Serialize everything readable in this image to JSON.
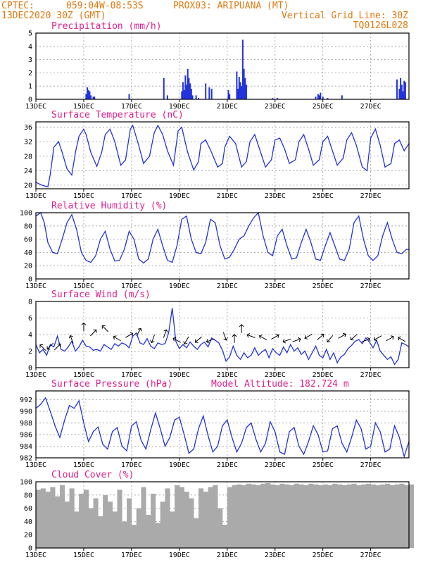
{
  "header": {
    "source": "CPTEC:",
    "coords": "059:04W-08:53S",
    "station": "PROX03: ARIPUANA (MT)",
    "date": "13DEC2020 30Z (GMT)",
    "grid_note": "Vertical Grid Line: 30Z",
    "code": "TQ0126L028"
  },
  "colors": {
    "header": "#e07a10",
    "title": "#e0208c",
    "series": "#2233dd",
    "cloud": "#aaaaaa",
    "grid": "#999999"
  },
  "chart_data": [
    {
      "id": "precip",
      "type": "bar",
      "title": "Precipitation (mm/h)",
      "ylim": [
        0,
        5
      ],
      "yticks": [
        "0",
        "1",
        "2",
        "3",
        "4",
        "5"
      ],
      "xticks": [
        "13DEC",
        "15DEC",
        "17DEC",
        "19DEC",
        "21DEC",
        "23DEC",
        "25DEC",
        "27DEC"
      ],
      "x_range_days": [
        13,
        28.6
      ],
      "grid": true,
      "x": [
        15.1,
        15.15,
        15.2,
        15.25,
        15.3,
        15.4,
        15.45,
        16.9,
        18.35,
        18.5,
        19.1,
        19.15,
        19.2,
        19.25,
        19.3,
        19.35,
        19.4,
        19.45,
        19.5,
        19.55,
        19.7,
        19.8,
        20.1,
        20.25,
        20.35,
        21.05,
        21.1,
        21.4,
        21.45,
        21.5,
        21.55,
        21.6,
        21.65,
        21.7,
        21.75,
        21.8,
        22.9,
        23.1,
        24.7,
        24.8,
        24.85,
        24.9,
        25.0,
        25.2,
        25.8,
        28.1,
        28.2,
        28.25,
        28.3,
        28.35,
        28.4,
        28.45
      ],
      "values": [
        0.4,
        0.9,
        0.7,
        0.6,
        0.3,
        0.2,
        0.2,
        0.4,
        1.6,
        0.3,
        0.6,
        1.3,
        0.7,
        1.8,
        1.1,
        2.3,
        1.6,
        1.2,
        0.8,
        0.3,
        0.3,
        0.1,
        1.2,
        0.9,
        0.8,
        0.7,
        0.4,
        2.1,
        0.8,
        1.7,
        1.3,
        1.0,
        4.5,
        2.3,
        1.6,
        1.1,
        0.1,
        0.1,
        0.2,
        0.4,
        0.3,
        0.5,
        0.2,
        0.1,
        0.3,
        1.5,
        0.8,
        1.6,
        1.1,
        0.6,
        1.4,
        1.3
      ]
    },
    {
      "id": "temp",
      "type": "line",
      "title": "Surface Temperature (nC)",
      "ylim": [
        19,
        37.5
      ],
      "yticks": [
        "20",
        "24",
        "28",
        "32",
        "36"
      ],
      "ytick_values": [
        20,
        24,
        28,
        32,
        36
      ],
      "xticks": [
        "13DEC",
        "15DEC",
        "17DEC",
        "19DEC",
        "21DEC",
        "23DEC",
        "25DEC",
        "27DEC"
      ],
      "x_range_days": [
        13,
        28.6
      ],
      "grid": true,
      "x": [
        13.0,
        13.25,
        13.5,
        13.6,
        13.75,
        13.95,
        14.1,
        14.3,
        14.5,
        14.65,
        14.8,
        15.0,
        15.1,
        15.3,
        15.55,
        15.75,
        15.9,
        16.1,
        16.3,
        16.55,
        16.75,
        16.95,
        17.05,
        17.3,
        17.5,
        17.75,
        17.95,
        18.1,
        18.3,
        18.5,
        18.75,
        18.95,
        19.1,
        19.35,
        19.6,
        19.8,
        19.9,
        20.1,
        20.35,
        20.6,
        20.8,
        20.9,
        21.1,
        21.35,
        21.6,
        21.8,
        21.95,
        22.15,
        22.35,
        22.6,
        22.85,
        23.0,
        23.2,
        23.4,
        23.6,
        23.85,
        24.0,
        24.2,
        24.4,
        24.6,
        24.85,
        25.0,
        25.2,
        25.4,
        25.6,
        25.85,
        26.0,
        26.2,
        26.4,
        26.65,
        26.85,
        27.0,
        27.2,
        27.4,
        27.6,
        27.85,
        28.0,
        28.2,
        28.4,
        28.6
      ],
      "values": [
        20.8,
        20.0,
        19.5,
        23.0,
        30.5,
        32.0,
        29.0,
        24.5,
        22.8,
        29.0,
        33.5,
        35.5,
        34.0,
        29.0,
        25.2,
        29.0,
        34.0,
        35.5,
        32.0,
        25.5,
        27.0,
        35.5,
        36.5,
        31.0,
        26.0,
        28.0,
        34.5,
        36.5,
        34.0,
        29.5,
        25.5,
        35.0,
        36.0,
        29.0,
        24.2,
        26.5,
        31.5,
        32.5,
        29.0,
        25.0,
        26.0,
        30.5,
        33.5,
        31.5,
        25.0,
        26.5,
        32.0,
        34.0,
        30.0,
        25.0,
        27.0,
        32.5,
        33.0,
        30.0,
        26.0,
        27.0,
        32.0,
        34.0,
        30.0,
        25.5,
        27.0,
        32.0,
        33.5,
        29.5,
        25.5,
        27.5,
        32.5,
        34.5,
        31.0,
        25.0,
        24.0,
        33.0,
        35.5,
        31.0,
        25.0,
        26.0,
        31.5,
        32.5,
        29.5,
        31.5
      ]
    },
    {
      "id": "rh",
      "type": "line",
      "title": "Relative Humidity (%)",
      "ylim": [
        0,
        100
      ],
      "yticks": [
        "0",
        "20",
        "40",
        "60",
        "80",
        "100"
      ],
      "ytick_values": [
        0,
        20,
        40,
        60,
        80,
        100
      ],
      "xticks": [
        "13DEC",
        "15DEC",
        "17DEC",
        "19DEC",
        "21DEC",
        "23DEC",
        "25DEC",
        "27DEC"
      ],
      "x_range_days": [
        13,
        28.6
      ],
      "grid": true,
      "x": [
        13.0,
        13.2,
        13.35,
        13.5,
        13.7,
        13.9,
        14.1,
        14.3,
        14.5,
        14.7,
        14.9,
        15.1,
        15.3,
        15.5,
        15.7,
        15.9,
        16.1,
        16.3,
        16.5,
        16.7,
        16.9,
        17.1,
        17.3,
        17.5,
        17.7,
        17.9,
        18.1,
        18.3,
        18.5,
        18.7,
        18.9,
        19.1,
        19.3,
        19.5,
        19.7,
        19.9,
        20.1,
        20.3,
        20.5,
        20.7,
        20.9,
        21.1,
        21.3,
        21.5,
        21.7,
        21.9,
        22.1,
        22.3,
        22.5,
        22.7,
        22.9,
        23.1,
        23.3,
        23.5,
        23.7,
        23.9,
        24.1,
        24.3,
        24.5,
        24.7,
        24.9,
        25.1,
        25.3,
        25.5,
        25.7,
        25.9,
        26.1,
        26.3,
        26.5,
        26.7,
        26.9,
        27.1,
        27.3,
        27.5,
        27.7,
        27.9,
        28.1,
        28.3,
        28.5,
        28.6
      ],
      "values": [
        95,
        100,
        85,
        55,
        40,
        38,
        60,
        85,
        97,
        75,
        40,
        28,
        25,
        35,
        60,
        72,
        45,
        27,
        28,
        45,
        72,
        60,
        30,
        24,
        30,
        60,
        75,
        50,
        28,
        25,
        50,
        90,
        95,
        60,
        40,
        38,
        55,
        90,
        85,
        50,
        30,
        33,
        45,
        60,
        65,
        80,
        92,
        100,
        65,
        40,
        35,
        65,
        75,
        50,
        30,
        32,
        55,
        75,
        55,
        30,
        28,
        50,
        70,
        50,
        30,
        28,
        45,
        85,
        95,
        60,
        35,
        28,
        35,
        65,
        85,
        60,
        40,
        38,
        45,
        44
      ]
    },
    {
      "id": "wind",
      "type": "line",
      "title": "Surface Wind (m/s)",
      "ylim": [
        0,
        8
      ],
      "yticks": [
        "0",
        "2",
        "4",
        "6",
        "8"
      ],
      "ytick_values": [
        0,
        2,
        4,
        6,
        8
      ],
      "xticks": [
        "13DEC",
        "15DEC",
        "17DEC",
        "19DEC",
        "21DEC",
        "23DEC",
        "25DEC",
        "27DEC"
      ],
      "x_range_days": [
        13,
        28.6
      ],
      "grid": true,
      "x": [
        13.0,
        13.15,
        13.3,
        13.45,
        13.6,
        13.75,
        13.9,
        14.05,
        14.2,
        14.35,
        14.5,
        14.65,
        14.8,
        14.95,
        15.1,
        15.25,
        15.4,
        15.55,
        15.7,
        15.85,
        16.0,
        16.15,
        16.3,
        16.45,
        16.6,
        16.75,
        16.9,
        17.05,
        17.2,
        17.35,
        17.5,
        17.65,
        17.8,
        17.95,
        18.1,
        18.25,
        18.4,
        18.55,
        18.7,
        18.85,
        19.0,
        19.15,
        19.3,
        19.45,
        19.6,
        19.75,
        19.9,
        20.05,
        20.2,
        20.35,
        20.5,
        20.65,
        20.8,
        20.95,
        21.1,
        21.25,
        21.4,
        21.55,
        21.7,
        21.85,
        22.0,
        22.15,
        22.3,
        22.45,
        22.6,
        22.75,
        22.9,
        23.05,
        23.2,
        23.35,
        23.5,
        23.65,
        23.8,
        23.95,
        24.1,
        24.25,
        24.4,
        24.55,
        24.7,
        24.85,
        25.0,
        25.15,
        25.3,
        25.45,
        25.6,
        25.75,
        25.9,
        26.05,
        26.2,
        26.35,
        26.5,
        26.65,
        26.8,
        26.95,
        27.1,
        27.25,
        27.4,
        27.55,
        27.7,
        27.85,
        28.0,
        28.15,
        28.3,
        28.45,
        28.6
      ],
      "values": [
        2.8,
        1.8,
        2.2,
        1.5,
        2.8,
        2.5,
        3.8,
        2.2,
        2.0,
        2.5,
        3.2,
        2.0,
        2.5,
        3.3,
        2.6,
        2.5,
        2.1,
        2.2,
        2.0,
        2.8,
        2.5,
        2.2,
        2.9,
        2.6,
        3.0,
        2.8,
        2.4,
        3.8,
        4.2,
        3.0,
        2.8,
        3.5,
        2.6,
        2.3,
        3.0,
        2.8,
        2.9,
        4.2,
        7.2,
        3.2,
        2.3,
        2.8,
        2.4,
        3.1,
        2.6,
        2.2,
        2.8,
        3.1,
        2.5,
        3.6,
        3.3,
        3.0,
        2.1,
        0.8,
        1.3,
        2.6,
        1.5,
        1.0,
        1.8,
        1.2,
        1.5,
        2.4,
        1.5,
        1.9,
        2.2,
        1.2,
        2.3,
        1.8,
        1.5,
        2.5,
        1.8,
        2.8,
        2.0,
        2.4,
        1.6,
        2.0,
        1.0,
        1.8,
        2.6,
        1.5,
        1.2,
        2.2,
        1.0,
        1.8,
        0.6,
        1.3,
        1.6,
        2.3,
        2.7,
        3.2,
        3.4,
        2.9,
        3.6,
        3.1,
        2.4,
        3.3,
        2.0,
        1.5,
        1.0,
        1.3,
        0.4,
        1.0,
        3.0,
        2.8,
        2.5
      ],
      "arrows": [
        {
          "x": 13.3,
          "y": 2.4,
          "dir": 315
        },
        {
          "x": 13.6,
          "y": 2.6,
          "dir": 225
        },
        {
          "x": 13.9,
          "y": 2.5,
          "dir": 45
        },
        {
          "x": 14.5,
          "y": 3.4,
          "dir": 340
        },
        {
          "x": 15.0,
          "y": 4.9,
          "dir": 0
        },
        {
          "x": 15.4,
          "y": 4.2,
          "dir": 45
        },
        {
          "x": 15.9,
          "y": 4.7,
          "dir": 315
        },
        {
          "x": 16.4,
          "y": 3.5,
          "dir": 300
        },
        {
          "x": 16.9,
          "y": 3.9,
          "dir": 60
        },
        {
          "x": 17.3,
          "y": 4.3,
          "dir": 30
        },
        {
          "x": 17.9,
          "y": 3.5,
          "dir": 200
        },
        {
          "x": 18.4,
          "y": 4.1,
          "dir": 20
        },
        {
          "x": 18.9,
          "y": 3.3,
          "dir": 300
        },
        {
          "x": 19.3,
          "y": 3.3,
          "dir": 210
        },
        {
          "x": 19.8,
          "y": 3.4,
          "dir": 230
        },
        {
          "x": 20.3,
          "y": 3.3,
          "dir": 250
        },
        {
          "x": 20.9,
          "y": 3.8,
          "dir": 160
        },
        {
          "x": 21.3,
          "y": 3.5,
          "dir": 0
        },
        {
          "x": 21.6,
          "y": 4.7,
          "dir": 0
        },
        {
          "x": 22.0,
          "y": 3.8,
          "dir": 290
        },
        {
          "x": 22.5,
          "y": 3.6,
          "dir": 300
        },
        {
          "x": 23.0,
          "y": 3.7,
          "dir": 60
        },
        {
          "x": 23.5,
          "y": 3.3,
          "dir": 250
        },
        {
          "x": 23.9,
          "y": 3.3,
          "dir": 70
        },
        {
          "x": 24.4,
          "y": 3.8,
          "dir": 240
        },
        {
          "x": 24.9,
          "y": 3.7,
          "dir": 50
        },
        {
          "x": 25.3,
          "y": 3.5,
          "dir": 220
        },
        {
          "x": 25.8,
          "y": 3.8,
          "dir": 60
        },
        {
          "x": 26.3,
          "y": 3.7,
          "dir": 230
        },
        {
          "x": 26.8,
          "y": 3.3,
          "dir": 70
        },
        {
          "x": 27.3,
          "y": 3.6,
          "dir": 240
        },
        {
          "x": 27.8,
          "y": 3.5,
          "dir": 60
        },
        {
          "x": 28.3,
          "y": 3.4,
          "dir": 300
        }
      ]
    },
    {
      "id": "pres",
      "type": "line",
      "title": "Surface Pressure (hPa)",
      "altitude_label": "Model Altitude: 182.724 m",
      "ylim": [
        982,
        993.5
      ],
      "yticks": [
        "982",
        "984",
        "986",
        "988",
        "990",
        "992"
      ],
      "ytick_values": [
        982,
        984,
        986,
        988,
        990,
        992
      ],
      "xticks": [
        "13DEC",
        "15DEC",
        "17DEC",
        "19DEC",
        "21DEC",
        "23DEC",
        "25DEC",
        "27DEC"
      ],
      "x_range_days": [
        13,
        28.6
      ],
      "grid": true,
      "x": [
        13.0,
        13.2,
        13.4,
        13.6,
        13.8,
        14.0,
        14.2,
        14.4,
        14.6,
        14.8,
        15.0,
        15.2,
        15.4,
        15.6,
        15.8,
        16.0,
        16.2,
        16.4,
        16.6,
        16.8,
        17.0,
        17.2,
        17.4,
        17.6,
        17.8,
        18.0,
        18.2,
        18.4,
        18.6,
        18.8,
        19.0,
        19.2,
        19.4,
        19.6,
        19.8,
        20.0,
        20.2,
        20.4,
        20.6,
        20.8,
        21.0,
        21.2,
        21.4,
        21.6,
        21.8,
        22.0,
        22.2,
        22.4,
        22.6,
        22.8,
        23.0,
        23.2,
        23.4,
        23.6,
        23.8,
        24.0,
        24.2,
        24.4,
        24.6,
        24.8,
        25.0,
        25.2,
        25.4,
        25.6,
        25.8,
        26.0,
        26.2,
        26.4,
        26.6,
        26.8,
        27.0,
        27.2,
        27.4,
        27.6,
        27.8,
        28.0,
        28.2,
        28.4,
        28.6
      ],
      "values": [
        990.5,
        991.2,
        992.3,
        990.0,
        987.5,
        985.5,
        988.5,
        991.0,
        990.5,
        991.8,
        988.0,
        984.8,
        986.5,
        987.3,
        984.3,
        983.5,
        986.5,
        987.2,
        984.0,
        983.2,
        987.5,
        988.2,
        985.0,
        983.5,
        986.8,
        989.7,
        987.0,
        984.0,
        985.5,
        988.5,
        989.0,
        986.0,
        982.8,
        983.5,
        987.0,
        989.2,
        985.8,
        983.0,
        984.0,
        987.5,
        988.5,
        985.5,
        983.0,
        984.5,
        987.2,
        988.0,
        985.2,
        983.0,
        984.5,
        988.2,
        986.5,
        983.0,
        982.6,
        986.5,
        987.2,
        984.0,
        982.6,
        984.8,
        987.5,
        986.0,
        983.0,
        983.2,
        987.0,
        987.5,
        984.5,
        983.0,
        985.5,
        988.5,
        987.0,
        983.5,
        984.0,
        988.0,
        986.5,
        983.0,
        983.5,
        987.5,
        985.5,
        982.2,
        984.8
      ]
    },
    {
      "id": "cloud",
      "type": "area",
      "title": "Cloud Cover (%)",
      "ylim": [
        0,
        100
      ],
      "yticks": [
        "0",
        "20",
        "40",
        "60",
        "80",
        "100"
      ],
      "ytick_values": [
        0,
        20,
        40,
        60,
        80,
        100
      ],
      "xticks": [
        "13DEC",
        "15DEC",
        "17DEC",
        "19DEC",
        "21DEC",
        "23DEC",
        "25DEC",
        "27DEC"
      ],
      "x_range_days": [
        13,
        28.6
      ],
      "grid": true,
      "x": [
        13.0,
        13.2,
        13.4,
        13.6,
        13.8,
        14.0,
        14.2,
        14.4,
        14.6,
        14.8,
        15.0,
        15.2,
        15.4,
        15.6,
        15.8,
        16.0,
        16.2,
        16.4,
        16.6,
        16.8,
        17.0,
        17.2,
        17.4,
        17.6,
        17.8,
        18.0,
        18.2,
        18.4,
        18.6,
        18.8,
        19.0,
        19.2,
        19.4,
        19.6,
        19.8,
        20.0,
        20.2,
        20.4,
        20.6,
        20.8,
        21.0,
        21.2,
        21.4,
        21.6,
        21.8,
        22.0,
        22.2,
        22.4,
        22.6,
        22.8,
        23.0,
        23.2,
        23.4,
        23.6,
        23.8,
        24.0,
        24.2,
        24.4,
        24.6,
        24.8,
        25.0,
        25.2,
        25.4,
        25.6,
        25.8,
        26.0,
        26.2,
        26.4,
        26.6,
        26.8,
        27.0,
        27.2,
        27.4,
        27.6,
        27.8,
        28.0,
        28.2,
        28.4,
        28.6
      ],
      "values": [
        88,
        90,
        85,
        92,
        78,
        95,
        70,
        90,
        55,
        82,
        88,
        60,
        75,
        48,
        80,
        70,
        55,
        88,
        40,
        75,
        35,
        60,
        92,
        50,
        82,
        38,
        70,
        90,
        55,
        95,
        92,
        85,
        75,
        45,
        90,
        85,
        92,
        95,
        60,
        35,
        92,
        95,
        96,
        95,
        97,
        96,
        95,
        97,
        98,
        96,
        95,
        97,
        96,
        95,
        97,
        96,
        95,
        97,
        96,
        95,
        96,
        95,
        97,
        96,
        95,
        96,
        97,
        95,
        96,
        97,
        96,
        95,
        96,
        97,
        95,
        96,
        97,
        95,
        96
      ]
    }
  ]
}
